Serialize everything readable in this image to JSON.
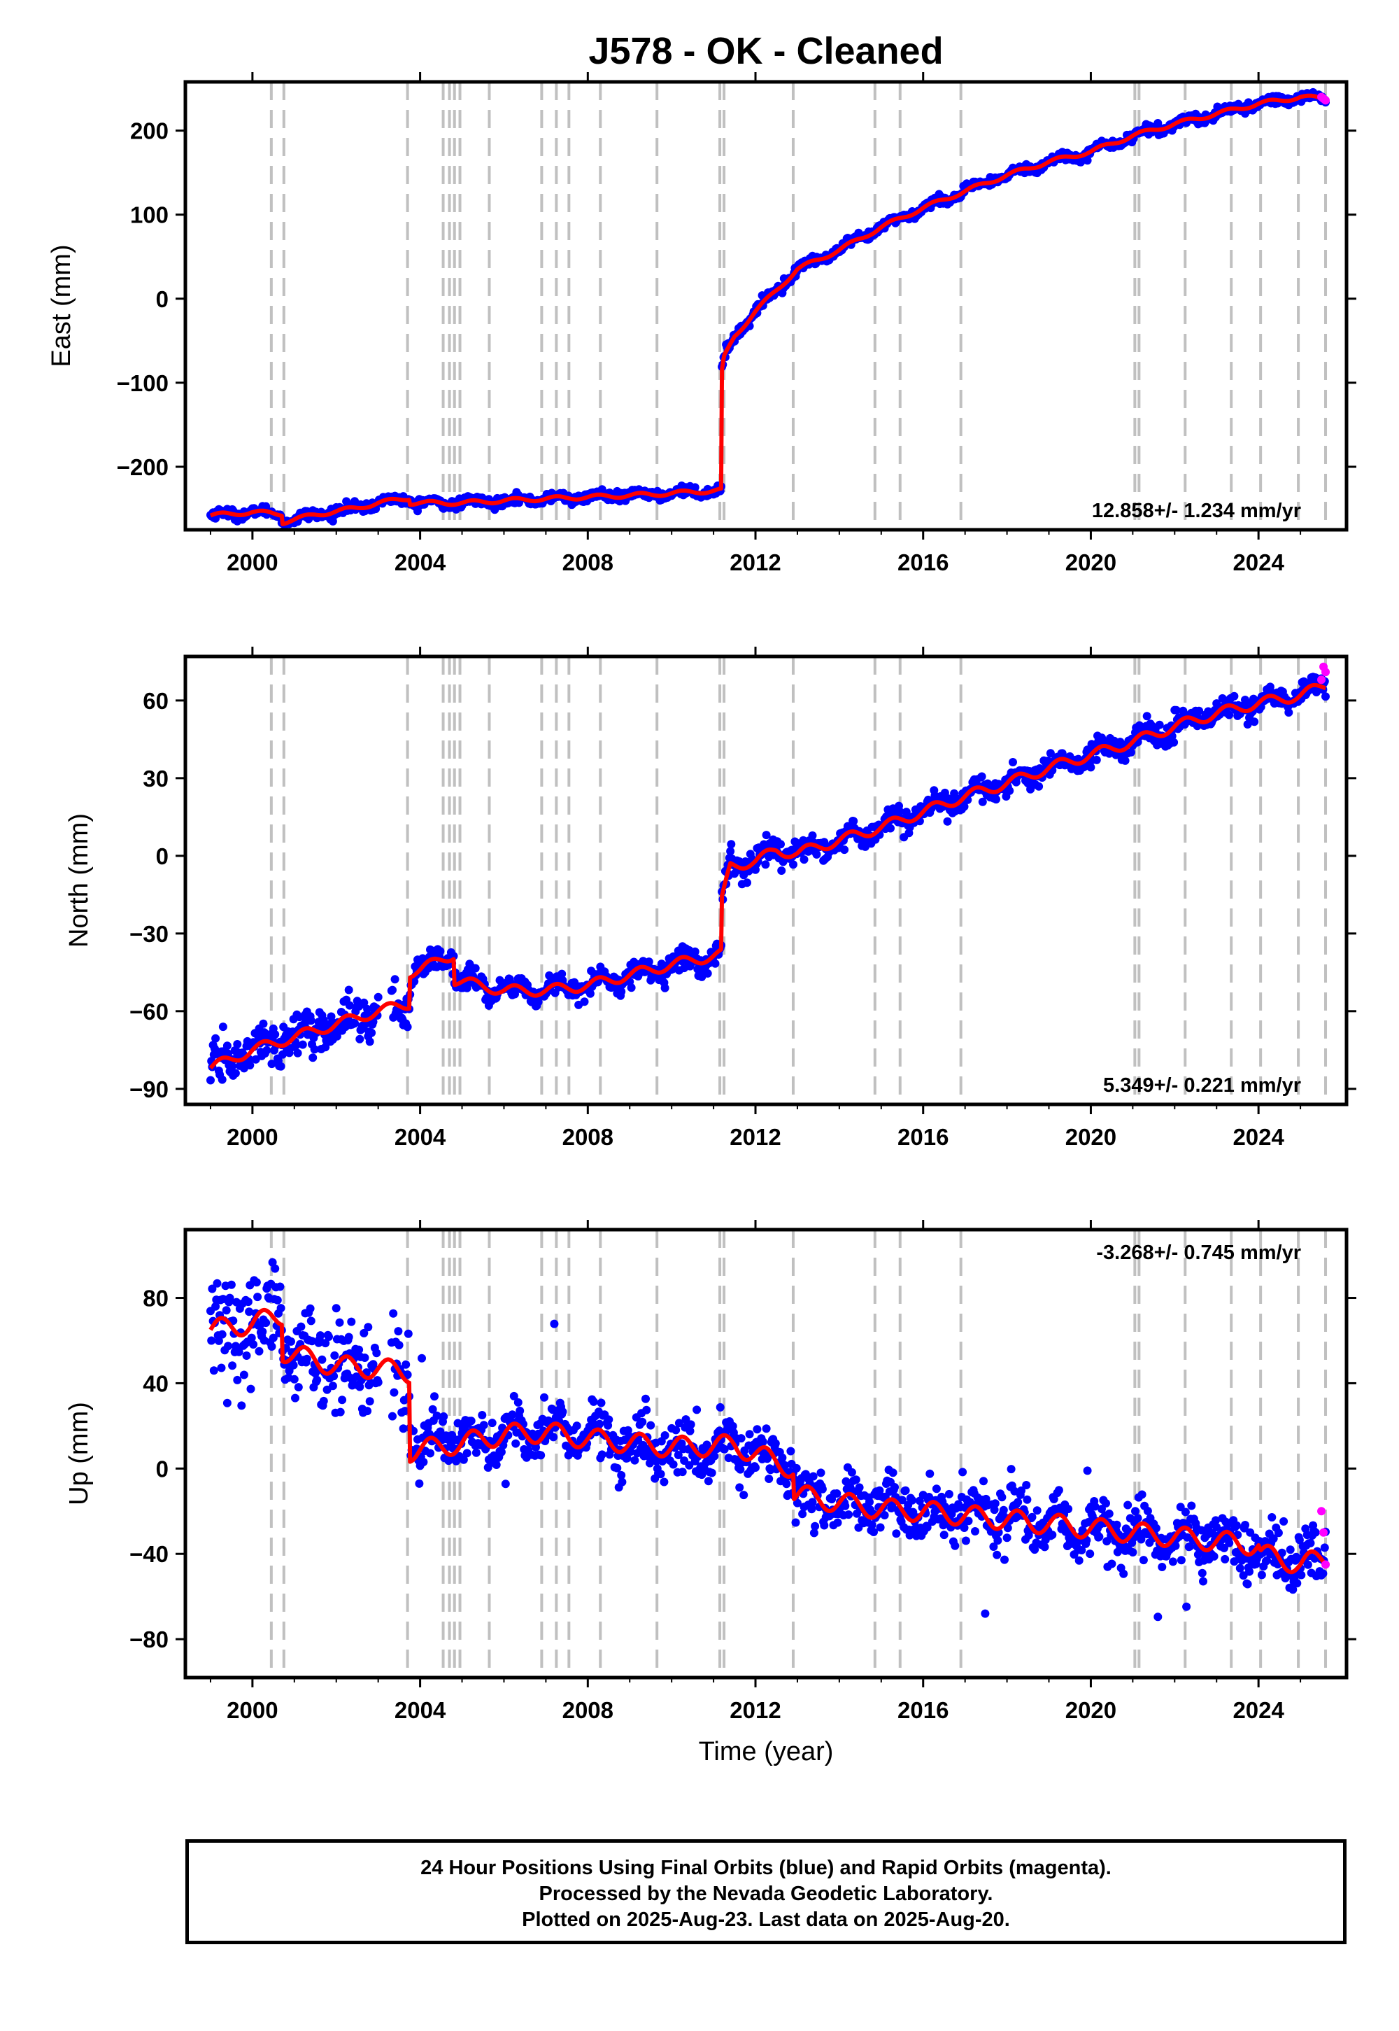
{
  "title": "J578  - OK - Cleaned",
  "xlabel": "Time (year)",
  "footer": {
    "line1": "24 Hour Positions Using Final Orbits (blue) and Rapid Orbits (magenta).",
    "line2": "Processed by the Nevada Geodetic Laboratory.",
    "line3": "Plotted on 2025-Aug-23. Last data on 2025-Aug-20."
  },
  "colors": {
    "final": "#0000ff",
    "rapid": "#ff00ff",
    "model": "#ff0000",
    "breaks": "#c0c0c0"
  },
  "chart_data": [
    {
      "type": "scatter",
      "ylabel": "East (mm)",
      "rate": "12.858+/- 1.234 mm/yr",
      "rate_position": "bottom-right",
      "xlim": [
        1998.4,
        2026.1
      ],
      "ylim": [
        -275,
        258
      ],
      "xticks": [
        2000,
        2004,
        2008,
        2012,
        2016,
        2020,
        2024
      ],
      "yticks": [
        -200,
        -100,
        0,
        100,
        200
      ],
      "model": {
        "x": [
          1999.0,
          2000.0,
          2000.7,
          2000.71,
          2001.5,
          2002.5,
          2003.0,
          2003.75,
          2003.76,
          2005.0,
          2006.5,
          2008.0,
          2009.5,
          2011.18,
          2011.19,
          2011.25,
          2011.5,
          2012.0,
          2012.5,
          2013.0,
          2014.0,
          2015.0,
          2016.0,
          2017.0,
          2018.0,
          2019.0,
          2020.0,
          2021.0,
          2022.0,
          2023.0,
          2024.0,
          2025.0,
          2025.6
        ],
        "y": [
          -258,
          -254,
          -256,
          -266,
          -257,
          -249,
          -243,
          -237,
          -243,
          -243,
          -239,
          -236,
          -233,
          -228,
          -90,
          -70,
          -45,
          -15,
          10,
          35,
          58,
          85,
          108,
          128,
          147,
          163,
          175,
          194,
          208,
          220,
          232,
          240,
          238
        ]
      },
      "rapid": {
        "x": [
          2025.5,
          2025.55,
          2025.6
        ],
        "y": [
          240,
          238,
          236
        ]
      },
      "breaks": [
        2000.45,
        2000.75,
        2003.7,
        2004.55,
        2004.7,
        2004.82,
        2004.95,
        2005.65,
        2006.9,
        2007.25,
        2007.55,
        2008.3,
        2009.65,
        2011.15,
        2011.25,
        2012.9,
        2014.85,
        2015.45,
        2016.9,
        2021.05,
        2021.15,
        2022.25,
        2023.35,
        2024.05,
        2024.95,
        2025.6
      ]
    },
    {
      "type": "scatter",
      "ylabel": "North (mm)",
      "rate": "5.349+/- 0.221 mm/yr",
      "rate_position": "bottom-right",
      "xlim": [
        1998.4,
        2026.1
      ],
      "ylim": [
        -96,
        77
      ],
      "xticks": [
        2000,
        2004,
        2008,
        2012,
        2016,
        2020,
        2024
      ],
      "yticks": [
        -90,
        -60,
        -30,
        0,
        30,
        60
      ],
      "model": {
        "x": [
          1999.0,
          2000.0,
          2001.0,
          2002.0,
          2003.0,
          2003.75,
          2003.76,
          2004.0,
          2004.8,
          2004.81,
          2006.0,
          2007.0,
          2008.0,
          2009.0,
          2010.0,
          2011.18,
          2011.19,
          2011.4,
          2012.0,
          2012.5,
          2013.0,
          2014.0,
          2015.0,
          2016.0,
          2017.0,
          2018.0,
          2019.0,
          2020.0,
          2021.0,
          2022.0,
          2023.0,
          2024.0,
          2025.0,
          2025.6
        ],
        "y": [
          -82,
          -75,
          -70,
          -65,
          -60,
          -57,
          -45,
          -44,
          -38,
          -48,
          -52,
          -52,
          -50,
          -46,
          -42,
          -38,
          -18,
          -4,
          -2,
          2,
          1,
          6,
          11,
          17,
          23,
          28,
          34,
          39,
          44,
          50,
          55,
          59,
          62,
          66
        ]
      },
      "rapid": {
        "x": [
          2025.5,
          2025.55,
          2025.6
        ],
        "y": [
          68,
          73,
          71
        ]
      },
      "breaks": [
        2000.45,
        2000.75,
        2003.7,
        2004.55,
        2004.7,
        2004.82,
        2004.95,
        2005.65,
        2006.9,
        2007.25,
        2007.55,
        2008.3,
        2009.65,
        2011.15,
        2011.25,
        2012.9,
        2014.85,
        2015.45,
        2016.9,
        2021.05,
        2021.15,
        2022.25,
        2023.35,
        2024.05,
        2024.95,
        2025.6
      ]
    },
    {
      "type": "scatter",
      "ylabel": "Up (mm)",
      "rate": "-3.268+/- 0.745 mm/yr",
      "rate_position": "top-right",
      "xlim": [
        1998.4,
        2026.1
      ],
      "ylim": [
        -98,
        112
      ],
      "xticks": [
        2000,
        2004,
        2008,
        2012,
        2016,
        2020,
        2024
      ],
      "yticks": [
        -80,
        -40,
        0,
        40,
        80
      ],
      "model": {
        "x": [
          1999.0,
          2000.0,
          2000.7,
          2000.71,
          2002.0,
          2003.0,
          2003.75,
          2003.76,
          2005.0,
          2006.0,
          2007.0,
          2008.0,
          2009.0,
          2010.0,
          2011.5,
          2012.5,
          2012.9,
          2012.91,
          2014.0,
          2015.0,
          2016.0,
          2017.0,
          2018.0,
          2019.0,
          2020.0,
          2021.0,
          2022.0,
          2023.0,
          2024.0,
          2024.05,
          2025.0,
          2025.6
        ],
        "y": [
          65,
          68,
          72,
          55,
          48,
          47,
          45,
          8,
          12,
          16,
          17,
          14,
          12,
          10,
          11,
          3,
          0,
          -12,
          -16,
          -19,
          -20,
          -22,
          -24,
          -26,
          -28,
          -30,
          -32,
          -34,
          -36,
          -40,
          -45,
          -42
        ]
      },
      "rapid": {
        "x": [
          2025.5,
          2025.55,
          2025.6
        ],
        "y": [
          -20,
          -30,
          -45
        ]
      },
      "breaks": [
        2000.45,
        2000.75,
        2003.7,
        2004.55,
        2004.7,
        2004.82,
        2004.95,
        2005.65,
        2006.9,
        2007.25,
        2007.55,
        2008.3,
        2009.65,
        2011.15,
        2011.25,
        2012.9,
        2014.85,
        2015.45,
        2016.9,
        2021.05,
        2021.15,
        2022.25,
        2023.35,
        2024.05,
        2024.95,
        2025.6
      ]
    }
  ]
}
